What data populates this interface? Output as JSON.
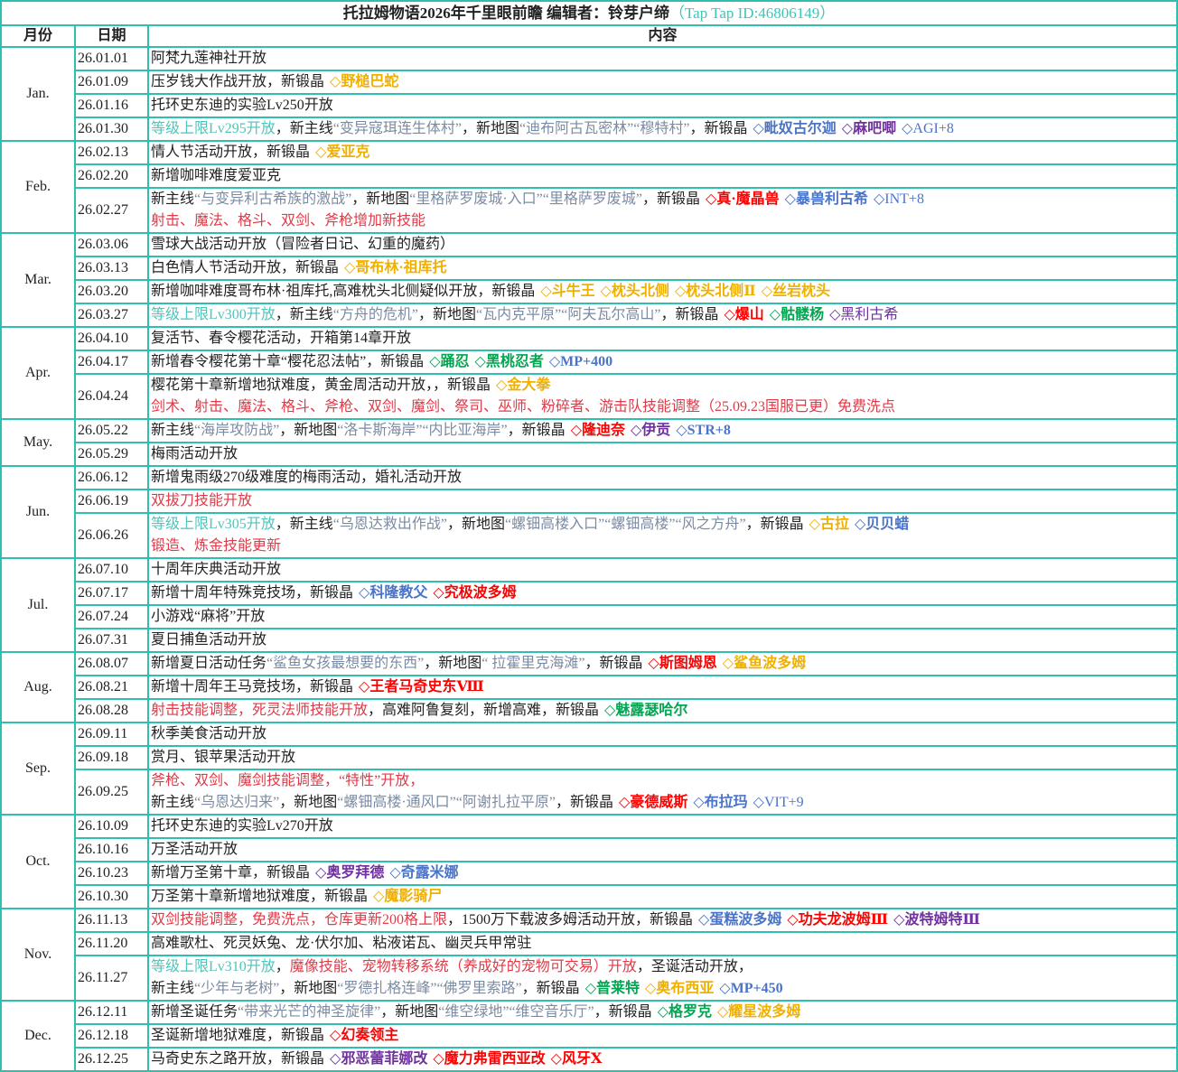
{
  "title": {
    "main": "托拉姆物语2026年千里眼前瞻 编辑者：铃芽户缔",
    "id": "（Tap Tap ID:46806149）"
  },
  "headers": {
    "month": "月份",
    "date": "日期",
    "content": "内容"
  },
  "colors": {
    "border": "#2ebfb1",
    "quote": "#7b8ba3",
    "level": "#4cc6bb",
    "skill": "#e03a48",
    "yellow": "#f0b000",
    "blue": "#4a74c9",
    "purple": "#7030a0",
    "red": "#ff0000",
    "green": "#00a650"
  },
  "months": [
    {
      "label": "Jan.",
      "entries": [
        {
          "date": "26.01.01",
          "lines": [
            [
              [
                "n",
                "阿梵九莲神社开放"
              ]
            ]
          ]
        },
        {
          "date": "26.01.09",
          "lines": [
            [
              [
                "n",
                "压岁钱大作战开放，新锻晶"
              ],
              [
                "Y",
                "◇野槌巴蛇"
              ]
            ]
          ]
        },
        {
          "date": "26.01.16",
          "lines": [
            [
              [
                "n",
                "托环史东迪的实验Lv250开放"
              ]
            ]
          ]
        },
        {
          "date": "26.01.30",
          "lines": [
            [
              [
                "c",
                "等级上限Lv295开放"
              ],
              [
                "n",
                "，新主线"
              ],
              [
                "g",
                "“变异寇珥连生体村”"
              ],
              [
                "n",
                "，新地图"
              ],
              [
                "g",
                "“迪布阿古瓦密林”“穆特村”"
              ],
              [
                "n",
                "，新锻晶"
              ],
              [
                "B",
                "◇毗奴古尔迦"
              ],
              [
                "P",
                "◇麻吧唧"
              ],
              [
                "b",
                "◇AGI+8"
              ]
            ]
          ]
        }
      ]
    },
    {
      "label": "Feb.",
      "entries": [
        {
          "date": "26.02.13",
          "lines": [
            [
              [
                "n",
                "情人节活动开放，新锻晶"
              ],
              [
                "Y",
                "◇爱亚克"
              ]
            ]
          ]
        },
        {
          "date": "26.02.20",
          "lines": [
            [
              [
                "n",
                "新增咖啡难度爱亚克"
              ]
            ]
          ]
        },
        {
          "date": "26.02.27",
          "lines": [
            [
              [
                "n",
                "新主线"
              ],
              [
                "g",
                "“与变异利古希族的激战”"
              ],
              [
                "n",
                "，新地图"
              ],
              [
                "g",
                "“里格萨罗废城·入口”“里格萨罗废城”"
              ],
              [
                "n",
                "，新锻晶"
              ],
              [
                "R",
                "◇真·魔晶兽"
              ],
              [
                "B",
                "◇暴兽利古希"
              ],
              [
                "b",
                "◇INT+8"
              ]
            ],
            [
              [
                "r",
                "射击、魔法、格斗、双剑、斧枪增加新技能"
              ]
            ]
          ]
        }
      ]
    },
    {
      "label": "Mar.",
      "entries": [
        {
          "date": "26.03.06",
          "lines": [
            [
              [
                "n",
                "雪球大战活动开放（冒险者日记、幻重的魔药）"
              ]
            ]
          ]
        },
        {
          "date": "26.03.13",
          "lines": [
            [
              [
                "n",
                "白色情人节活动开放，新锻晶"
              ],
              [
                "Y",
                "◇哥布林·祖库托"
              ]
            ]
          ]
        },
        {
          "date": "26.03.20",
          "lines": [
            [
              [
                "n",
                "新增咖啡难度哥布林·祖库托,高难枕头北侧疑似开放，新锻晶"
              ],
              [
                "Y",
                "◇斗牛王"
              ],
              [
                "Y",
                "◇枕头北侧"
              ],
              [
                "Y",
                "◇枕头北侧Ⅱ"
              ],
              [
                "Y",
                "◇丝岩枕头"
              ]
            ]
          ]
        },
        {
          "date": "26.03.27",
          "lines": [
            [
              [
                "c",
                "等级上限Lv300开放"
              ],
              [
                "n",
                "，新主线"
              ],
              [
                "g",
                "“方舟的危机”"
              ],
              [
                "n",
                "，新地图"
              ],
              [
                "g",
                "“瓦内克平原”“阿夫瓦尔高山”"
              ],
              [
                "n",
                "，新锻晶"
              ],
              [
                "R",
                "◇爆山"
              ],
              [
                "G",
                "◇骷髅杨"
              ],
              [
                "p",
                "◇黑利古希"
              ]
            ]
          ]
        }
      ]
    },
    {
      "label": "Apr.",
      "entries": [
        {
          "date": "26.04.10",
          "lines": [
            [
              [
                "n",
                "复活节、春令樱花活动，开箱第14章开放"
              ]
            ]
          ]
        },
        {
          "date": "26.04.17",
          "lines": [
            [
              [
                "n",
                "新增春令樱花第十章“樱花忍法帖”，新锻晶"
              ],
              [
                "G",
                "◇踊忍"
              ],
              [
                "G",
                "◇黑桃忍者"
              ],
              [
                "B",
                "◇MP+400"
              ]
            ]
          ]
        },
        {
          "date": "26.04.24",
          "lines": [
            [
              [
                "n",
                "樱花第十章新增地狱难度，黄金周活动开放，，新锻晶"
              ],
              [
                "Y",
                "◇金大拳"
              ]
            ],
            [
              [
                "r",
                "剑术、射击、魔法、格斗、斧枪、双剑、魔剑、祭司、巫师、粉碎者、游击队技能调整（25.09.23国服已更）免费洗点"
              ]
            ]
          ]
        }
      ]
    },
    {
      "label": "May.",
      "entries": [
        {
          "date": "26.05.22",
          "lines": [
            [
              [
                "n",
                "新主线"
              ],
              [
                "g",
                "“海岸攻防战”"
              ],
              [
                "n",
                "，新地图"
              ],
              [
                "g",
                "“洛卡斯海岸”“内比亚海岸”"
              ],
              [
                "n",
                "，新锻晶"
              ],
              [
                "R",
                "◇隆迪奈"
              ],
              [
                "P",
                "◇伊贡"
              ],
              [
                "B",
                "◇STR+8"
              ]
            ]
          ]
        },
        {
          "date": "26.05.29",
          "lines": [
            [
              [
                "n",
                "梅雨活动开放"
              ]
            ]
          ]
        }
      ]
    },
    {
      "label": "Jun.",
      "entries": [
        {
          "date": "26.06.12",
          "lines": [
            [
              [
                "n",
                "新增鬼雨级270级难度的梅雨活动，婚礼活动开放"
              ]
            ]
          ]
        },
        {
          "date": "26.06.19",
          "lines": [
            [
              [
                "r",
                "双拔刀技能开放"
              ]
            ]
          ]
        },
        {
          "date": "26.06.26",
          "lines": [
            [
              [
                "c",
                "等级上限Lv305开放"
              ],
              [
                "n",
                "，新主线"
              ],
              [
                "g",
                "“乌恩达救出作战”"
              ],
              [
                "n",
                "，新地图"
              ],
              [
                "g",
                "“螺钿高楼入口”“螺钿高楼”“风之方舟”"
              ],
              [
                "n",
                "，新锻晶"
              ],
              [
                "Y",
                "◇古拉"
              ],
              [
                "B",
                "◇贝贝蜡"
              ]
            ],
            [
              [
                "r",
                "锻造、炼金技能更新"
              ]
            ]
          ]
        }
      ]
    },
    {
      "label": "Jul.",
      "entries": [
        {
          "date": "26.07.10",
          "lines": [
            [
              [
                "n",
                "十周年庆典活动开放"
              ]
            ]
          ]
        },
        {
          "date": "26.07.17",
          "lines": [
            [
              [
                "n",
                "新增十周年特殊竞技场，新锻晶"
              ],
              [
                "B",
                "◇科隆教父"
              ],
              [
                "R",
                "◇究极波多姆"
              ]
            ]
          ]
        },
        {
          "date": "26.07.24",
          "lines": [
            [
              [
                "n",
                "小游戏“麻将”开放"
              ]
            ]
          ]
        },
        {
          "date": "26.07.31",
          "lines": [
            [
              [
                "n",
                "夏日捕鱼活动开放"
              ]
            ]
          ]
        }
      ]
    },
    {
      "label": "Aug.",
      "entries": [
        {
          "date": "26.08.07",
          "lines": [
            [
              [
                "n",
                "新增夏日活动任务"
              ],
              [
                "g",
                "“鲨鱼女孩最想要的东西”"
              ],
              [
                "n",
                "，新地图"
              ],
              [
                "g",
                "“ 拉霍里克海滩”"
              ],
              [
                "n",
                "，新锻晶"
              ],
              [
                "R",
                "◇斯图姆恩"
              ],
              [
                "Y",
                "◇鲨鱼波多姆"
              ]
            ]
          ]
        },
        {
          "date": "26.08.21",
          "lines": [
            [
              [
                "n",
                "新增十周年王马竞技场，新锻晶"
              ],
              [
                "R",
                "◇王者马奇史东Ⅷ"
              ]
            ]
          ]
        },
        {
          "date": "26.08.28",
          "lines": [
            [
              [
                "r",
                "射击技能调整，死灵法师技能开放"
              ],
              [
                "n",
                "，高难阿鲁复刻，新增高难，新锻晶"
              ],
              [
                "G",
                "◇魅露瑟哈尔"
              ]
            ]
          ]
        }
      ]
    },
    {
      "label": "Sep.",
      "entries": [
        {
          "date": "26.09.11",
          "lines": [
            [
              [
                "n",
                "秋季美食活动开放"
              ]
            ]
          ]
        },
        {
          "date": "26.09.18",
          "lines": [
            [
              [
                "n",
                "赏月、银苹果活动开放"
              ]
            ]
          ]
        },
        {
          "date": "26.09.25",
          "lines": [
            [
              [
                "r",
                "斧枪、双剑、魔剑技能调整，“特性”开放，"
              ]
            ],
            [
              [
                "n",
                "新主线"
              ],
              [
                "g",
                "“乌恩达归来”"
              ],
              [
                "n",
                "，新地图"
              ],
              [
                "g",
                "“螺钿高楼·通风口”“阿谢扎拉平原”"
              ],
              [
                "n",
                "，新锻晶"
              ],
              [
                "R",
                "◇豪德威斯"
              ],
              [
                "B",
                "◇布拉玛"
              ],
              [
                "b",
                "◇VIT+9"
              ]
            ]
          ]
        }
      ]
    },
    {
      "label": "Oct.",
      "entries": [
        {
          "date": "26.10.09",
          "lines": [
            [
              [
                "n",
                "托环史东迪的实验Lv270开放"
              ]
            ]
          ]
        },
        {
          "date": "26.10.16",
          "lines": [
            [
              [
                "n",
                "万圣活动开放"
              ]
            ]
          ]
        },
        {
          "date": "26.10.23",
          "lines": [
            [
              [
                "n",
                "新增万圣第十章，新锻晶"
              ],
              [
                "P",
                "◇奥罗拜德"
              ],
              [
                "B",
                "◇奇露米娜"
              ]
            ]
          ]
        },
        {
          "date": "26.10.30",
          "lines": [
            [
              [
                "n",
                "万圣第十章新增地狱难度，新锻晶"
              ],
              [
                "Y",
                "◇魔影骑尸"
              ]
            ]
          ]
        }
      ]
    },
    {
      "label": "Nov.",
      "entries": [
        {
          "date": "26.11.13",
          "lines": [
            [
              [
                "r",
                "双剑技能调整，免费洗点，仓库更新200格上限"
              ],
              [
                "n",
                "，1500万下载波多姆活动开放，新锻晶"
              ],
              [
                "B",
                "◇蛋糕波多姆"
              ],
              [
                "R",
                "◇功夫龙波姆Ⅲ"
              ],
              [
                "P",
                "◇波特姆特Ⅲ"
              ]
            ]
          ]
        },
        {
          "date": "26.11.20",
          "lines": [
            [
              [
                "n",
                "高难歌杜、死灵妖兔、龙·伏尔加、粘液诺瓦、幽灵兵甲常驻"
              ]
            ]
          ]
        },
        {
          "date": "26.11.27",
          "lines": [
            [
              [
                "c",
                "等级上限Lv310开放"
              ],
              [
                "n",
                "，"
              ],
              [
                "r",
                "魔像技能、宠物转移系统（养成好的宠物可交易）开放"
              ],
              [
                "n",
                "，圣诞活动开放，"
              ]
            ],
            [
              [
                "n",
                "新主线"
              ],
              [
                "g",
                "“少年与老树”"
              ],
              [
                "n",
                "，新地图"
              ],
              [
                "g",
                "“罗德扎格连峰”“佛罗里索路”"
              ],
              [
                "n",
                "，新锻晶"
              ],
              [
                "G",
                "◇普莱特"
              ],
              [
                "Y",
                "◇奥布西亚"
              ],
              [
                "B",
                "◇MP+450"
              ]
            ]
          ]
        }
      ]
    },
    {
      "label": "Dec.",
      "entries": [
        {
          "date": "26.12.11",
          "lines": [
            [
              [
                "n",
                "新增圣诞任务"
              ],
              [
                "g",
                "“带来光芒的神圣旋律”"
              ],
              [
                "n",
                "，新地图"
              ],
              [
                "g",
                "“维空绿地”“维空音乐厅”"
              ],
              [
                "n",
                "，新锻晶"
              ],
              [
                "G",
                "◇格罗克"
              ],
              [
                "Y",
                "◇耀星波多姆"
              ]
            ]
          ]
        },
        {
          "date": "26.12.18",
          "lines": [
            [
              [
                "n",
                "圣诞新增地狱难度，新锻晶"
              ],
              [
                "R",
                "◇幻奏领主"
              ]
            ]
          ]
        },
        {
          "date": "26.12.25",
          "lines": [
            [
              [
                "n",
                "马奇史东之路开放，新锻晶"
              ],
              [
                "P",
                "◇邪恶蕾菲娜改"
              ],
              [
                "R",
                "◇魔力弗雷西亚改"
              ],
              [
                "R",
                "◇风牙Ⅹ"
              ]
            ]
          ]
        }
      ]
    }
  ]
}
